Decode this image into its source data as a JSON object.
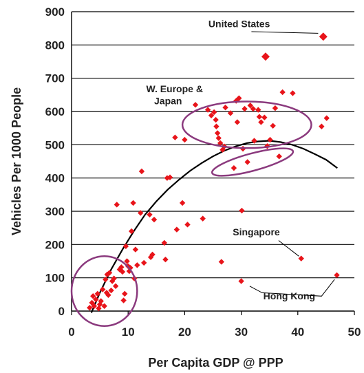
{
  "chart_data": {
    "type": "scatter",
    "title": "",
    "xlabel": "Per Capita GDP @ PPP",
    "ylabel": "Vehicles Per 1000 People",
    "xlim": [
      0,
      50
    ],
    "ylim": [
      0,
      900
    ],
    "xticks": [
      0,
      10,
      20,
      30,
      40,
      50
    ],
    "yticks": [
      0,
      100,
      200,
      300,
      400,
      500,
      600,
      700,
      800,
      900
    ],
    "grid": "horizontal",
    "marker_color": "#e8141a",
    "fit_color": "#000000",
    "ellipse_color": "#8b3a7e",
    "series": [
      {
        "marker": "diamond",
        "points": [
          [
            3.2,
            10
          ],
          [
            3.6,
            25
          ],
          [
            3.8,
            45
          ],
          [
            4.0,
            15
          ],
          [
            4.3,
            35
          ],
          [
            4.6,
            52
          ],
          [
            4.8,
            8
          ],
          [
            5.0,
            20
          ],
          [
            5.2,
            30
          ],
          [
            5.5,
            65
          ],
          [
            5.8,
            15
          ],
          [
            6.0,
            95
          ],
          [
            6.2,
            55
          ],
          [
            6.3,
            110
          ],
          [
            6.5,
            48
          ],
          [
            6.7,
            115
          ],
          [
            7.0,
            62
          ],
          [
            7.2,
            90
          ],
          [
            7.5,
            98
          ],
          [
            7.8,
            75
          ],
          [
            8.0,
            320
          ],
          [
            8.5,
            125
          ],
          [
            8.8,
            132
          ],
          [
            9.0,
            118
          ],
          [
            9.2,
            32
          ],
          [
            9.4,
            52
          ],
          [
            9.6,
            195
          ],
          [
            9.8,
            150
          ],
          [
            10.0,
            135
          ],
          [
            10.2,
            120
          ],
          [
            10.4,
            130
          ],
          [
            10.6,
            240
          ],
          [
            10.9,
            325
          ],
          [
            11.1,
            98
          ],
          [
            11.3,
            185
          ],
          [
            11.6,
            138
          ],
          [
            12.2,
            295
          ],
          [
            12.4,
            420
          ],
          [
            12.8,
            145
          ],
          [
            13.8,
            290
          ],
          [
            14.0,
            162
          ],
          [
            14.3,
            170
          ],
          [
            14.6,
            275
          ],
          [
            16.4,
            205
          ],
          [
            16.6,
            155
          ],
          [
            16.9,
            400
          ],
          [
            17.4,
            402
          ],
          [
            18.3,
            522
          ],
          [
            18.6,
            245
          ],
          [
            19.6,
            325
          ],
          [
            20.0,
            515
          ],
          [
            20.5,
            260
          ],
          [
            21.9,
            620
          ],
          [
            23.2,
            278
          ],
          [
            24.1,
            605
          ],
          [
            24.7,
            588
          ],
          [
            25.2,
            598
          ],
          [
            25.5,
            575
          ],
          [
            25.6,
            555
          ],
          [
            25.8,
            535
          ],
          [
            26.0,
            520
          ],
          [
            26.3,
            505
          ],
          [
            26.5,
            148
          ],
          [
            26.7,
            485
          ],
          [
            27.0,
            495
          ],
          [
            27.2,
            612
          ],
          [
            28.1,
            595
          ],
          [
            28.7,
            430
          ],
          [
            29.1,
            632
          ],
          [
            29.3,
            568
          ],
          [
            29.6,
            640
          ],
          [
            30.1,
            302
          ],
          [
            30.3,
            488
          ],
          [
            30.6,
            608
          ],
          [
            31.1,
            448
          ],
          [
            31.6,
            618
          ],
          [
            32.1,
            608
          ],
          [
            32.3,
            512
          ],
          [
            33.0,
            605
          ],
          [
            33.2,
            584
          ],
          [
            33.5,
            568
          ],
          [
            34.1,
            582
          ],
          [
            34.3,
            765
          ],
          [
            34.6,
            496
          ],
          [
            35.1,
            515
          ],
          [
            35.6,
            557
          ],
          [
            36.0,
            610
          ],
          [
            36.7,
            465
          ],
          [
            37.3,
            658
          ],
          [
            39.1,
            655
          ],
          [
            40.6,
            158
          ],
          [
            44.2,
            555
          ],
          [
            44.5,
            825
          ],
          [
            45.1,
            580
          ],
          [
            46.9,
            108
          ],
          [
            30.0,
            90
          ]
        ]
      }
    ],
    "trendline": [
      [
        3.5,
        -5
      ],
      [
        5,
        55
      ],
      [
        7,
        125
      ],
      [
        9,
        185
      ],
      [
        11,
        240
      ],
      [
        13,
        290
      ],
      [
        15,
        330
      ],
      [
        17,
        365
      ],
      [
        19,
        395
      ],
      [
        21,
        422
      ],
      [
        23,
        445
      ],
      [
        25,
        465
      ],
      [
        27,
        482
      ],
      [
        29,
        495
      ],
      [
        31,
        505
      ],
      [
        33,
        510
      ],
      [
        35,
        512
      ],
      [
        37,
        508
      ],
      [
        39,
        500
      ],
      [
        41,
        488
      ],
      [
        43,
        472
      ],
      [
        45,
        455
      ],
      [
        47,
        430
      ]
    ],
    "ellipses": [
      {
        "cx": 31.0,
        "cy": 560,
        "rx": 11.4,
        "ry": 70
      },
      {
        "cx": 32.0,
        "cy": 448,
        "rx": 7.4,
        "ry": 26,
        "rotate": -15
      },
      {
        "cx": 5.8,
        "cy": 60,
        "rx": 5.8,
        "ry": 105
      }
    ],
    "annotations": [
      {
        "text": "United States",
        "x": 24.2,
        "y": 853,
        "anchor": "start",
        "line": [
          [
            31.8,
            840
          ],
          [
            43.6,
            835
          ]
        ]
      },
      {
        "text": "W. Europe &",
        "x": 13.2,
        "y": 658,
        "anchor": "start"
      },
      {
        "text": "Japan",
        "x": 14.6,
        "y": 622,
        "anchor": "start"
      },
      {
        "text": "Singapore",
        "x": 28.5,
        "y": 228,
        "anchor": "start",
        "line": [
          [
            36.6,
            212
          ],
          [
            40.2,
            165
          ]
        ]
      },
      {
        "text": "Hong Kong",
        "x": 33.9,
        "y": 35,
        "anchor": "start",
        "line": [
          [
            31.5,
            75
          ],
          [
            33.7,
            55
          ],
          [
            44.2,
            45
          ],
          [
            46.5,
            95
          ]
        ]
      }
    ]
  }
}
